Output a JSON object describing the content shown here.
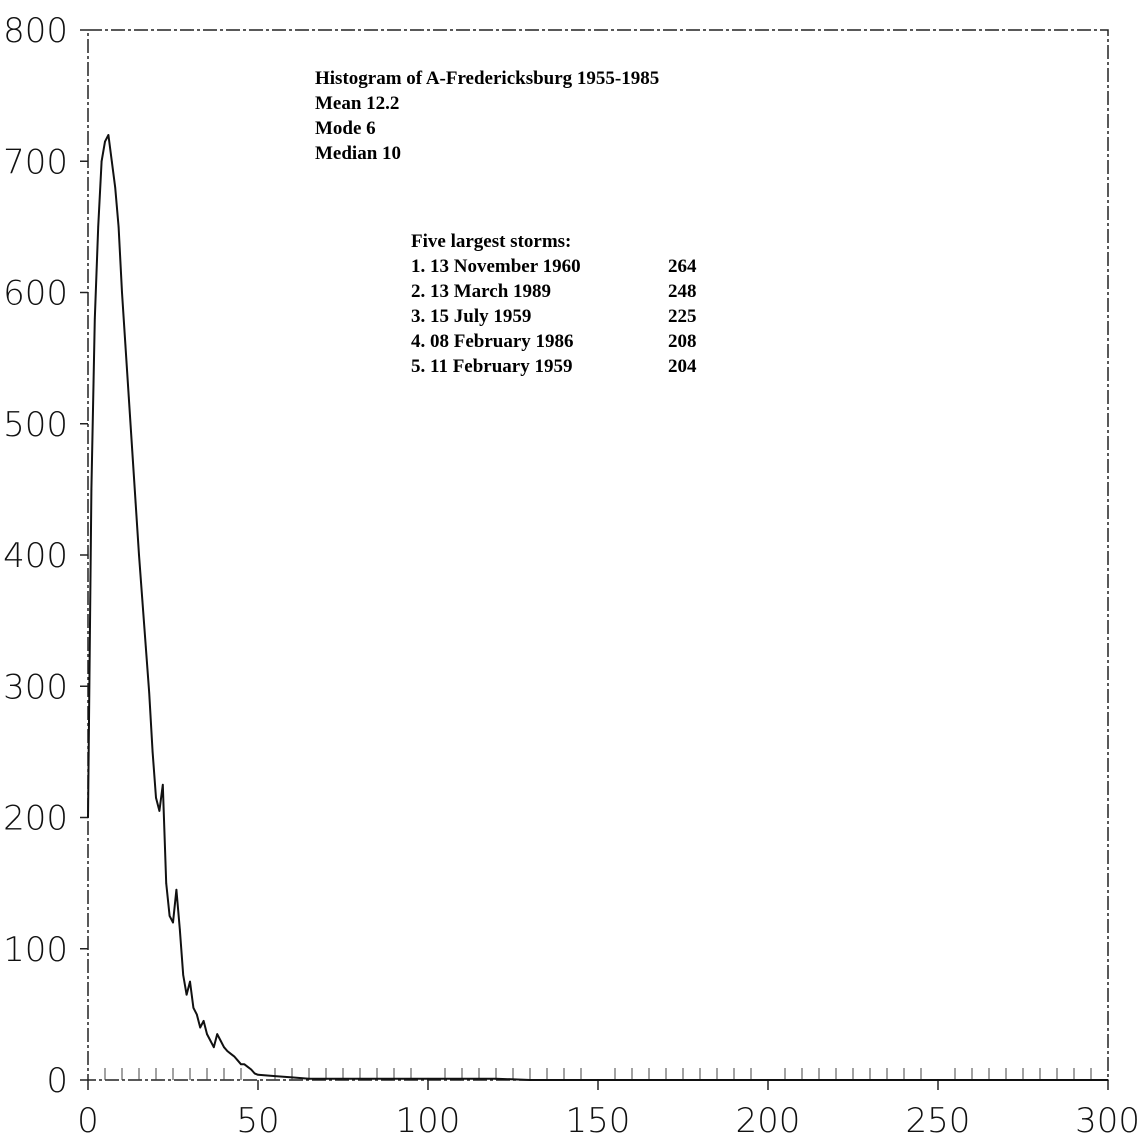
{
  "chart_data": {
    "type": "line",
    "title": "Histogram of A-Fredericksburg 1955-1985",
    "stats": [
      {
        "label": "Mean 12.2"
      },
      {
        "label": "Mode 6"
      },
      {
        "label": "Median 10"
      }
    ],
    "storms_heading": "Five largest storms:",
    "storms": [
      {
        "rank_date": "1. 13 November 1960",
        "value": "264"
      },
      {
        "rank_date": "2. 13 March 1989",
        "value": "248"
      },
      {
        "rank_date": "3. 15 July 1959",
        "value": "225"
      },
      {
        "rank_date": "4. 08 February 1986",
        "value": "208"
      },
      {
        "rank_date": "5. 11 February 1959",
        "value": "204"
      }
    ],
    "xlim": [
      0,
      300
    ],
    "ylim": [
      0,
      800
    ],
    "x_ticks": [
      0,
      50,
      100,
      150,
      200,
      250,
      300
    ],
    "x_tick_labels": [
      "0",
      "50",
      "100",
      "150",
      "200",
      "250",
      "300"
    ],
    "y_ticks": [
      0,
      100,
      200,
      300,
      400,
      500,
      600,
      700,
      800
    ],
    "y_tick_labels": [
      "0",
      "100",
      "200",
      "300",
      "400",
      "500",
      "600",
      "700",
      "800"
    ],
    "series": [
      {
        "x": [
          0,
          1,
          2,
          3,
          4,
          5,
          6,
          7,
          8,
          9,
          10,
          11,
          12,
          13,
          14,
          15,
          16,
          17,
          18,
          19,
          20,
          21,
          22,
          23,
          24,
          25,
          26,
          27,
          28,
          29,
          30,
          31,
          32,
          33,
          34,
          35,
          36,
          37,
          38,
          39,
          40,
          41,
          42,
          43,
          44,
          45,
          46,
          47,
          48,
          49,
          50,
          55,
          60,
          65,
          70,
          80,
          90,
          100,
          110,
          120,
          130,
          140,
          150,
          200,
          250,
          300
        ],
        "y": [
          200,
          450,
          580,
          650,
          700,
          715,
          720,
          700,
          680,
          650,
          600,
          560,
          520,
          480,
          440,
          400,
          365,
          330,
          295,
          250,
          215,
          205,
          225,
          150,
          125,
          120,
          145,
          115,
          80,
          65,
          75,
          55,
          50,
          40,
          45,
          35,
          30,
          25,
          35,
          30,
          25,
          22,
          20,
          18,
          15,
          12,
          12,
          10,
          8,
          5,
          4,
          3,
          2,
          1,
          1,
          1,
          1,
          1,
          1,
          1,
          0,
          0,
          0,
          0,
          0,
          0
        ]
      }
    ],
    "grid": false,
    "xlabel": "",
    "ylabel": ""
  }
}
